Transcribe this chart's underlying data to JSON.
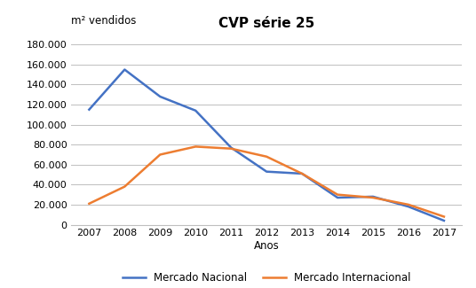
{
  "title": "CVP série 25",
  "ylabel": "m² vendidos",
  "xlabel": "Anos",
  "years": [
    2007,
    2008,
    2009,
    2010,
    2011,
    2012,
    2013,
    2014,
    2015,
    2016,
    2017
  ],
  "nacional": [
    115000,
    155000,
    128000,
    114000,
    77000,
    53000,
    51000,
    27000,
    28000,
    18000,
    4000
  ],
  "internacional": [
    21000,
    38000,
    70000,
    78000,
    76000,
    68000,
    51000,
    30000,
    27000,
    20000,
    8000
  ],
  "nacional_color": "#4472C4",
  "internacional_color": "#ED7D31",
  "ylim": [
    0,
    190000
  ],
  "yticks": [
    0,
    20000,
    40000,
    60000,
    80000,
    100000,
    120000,
    140000,
    160000,
    180000
  ],
  "legend_nacional": "Mercado Nacional",
  "legend_internacional": "Mercado Internacional",
  "background_color": "#ffffff",
  "grid_color": "#bfbfbf",
  "title_fontsize": 11,
  "label_fontsize": 8.5,
  "tick_fontsize": 8
}
